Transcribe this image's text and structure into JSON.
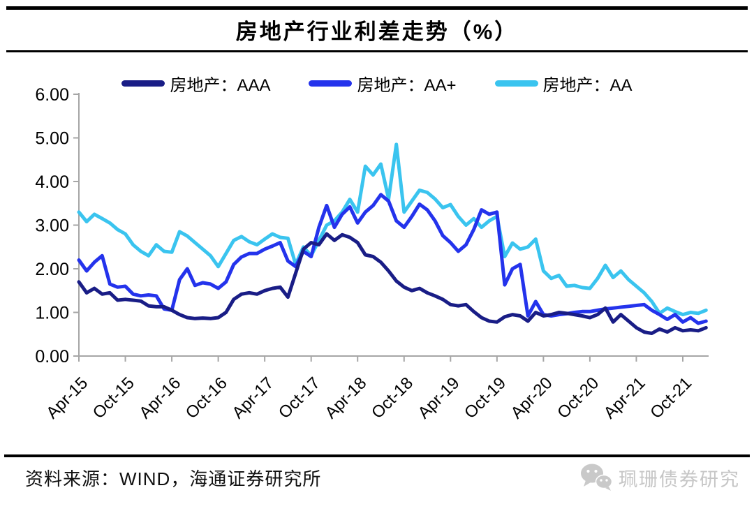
{
  "title": "房地产行业利差走势（%）",
  "source_note": "资料来源：WIND，海通证券研究所",
  "watermark": {
    "icon": "wechat-icon",
    "label": "珮珊债券研究"
  },
  "chart_data": {
    "type": "line",
    "title": "房地产行业利差走势（%）",
    "unit": "%",
    "x_start": "Apr-15",
    "x_end": "Jan-22",
    "x_frequency": "monthly",
    "x_tick_labels": [
      "Apr-15",
      "Oct-15",
      "Apr-16",
      "Oct-16",
      "Apr-17",
      "Oct-17",
      "Apr-18",
      "Oct-18",
      "Apr-19",
      "Oct-19",
      "Apr-20",
      "Oct-20",
      "Apr-21",
      "Oct-21"
    ],
    "x_tick_month_indices": [
      0,
      6,
      12,
      18,
      24,
      30,
      36,
      42,
      48,
      54,
      60,
      66,
      72,
      78
    ],
    "y_ticks": [
      "0.00",
      "1.00",
      "2.00",
      "3.00",
      "4.00",
      "5.00",
      "6.00"
    ],
    "ylim": [
      0,
      6
    ],
    "grid": false,
    "legend_position": "top",
    "axis_color": "#a6a6a6",
    "series": [
      {
        "name": "房地产：AAA",
        "color": "#191d86",
        "values": [
          1.7,
          1.45,
          1.55,
          1.42,
          1.45,
          1.28,
          1.3,
          1.28,
          1.26,
          1.15,
          1.13,
          1.13,
          1.05,
          0.95,
          0.88,
          0.86,
          0.87,
          0.86,
          0.88,
          1.0,
          1.3,
          1.42,
          1.45,
          1.42,
          1.5,
          1.55,
          1.58,
          1.35,
          1.9,
          2.45,
          2.6,
          2.55,
          2.8,
          2.65,
          2.78,
          2.72,
          2.6,
          2.32,
          2.28,
          2.15,
          1.95,
          1.72,
          1.58,
          1.5,
          1.55,
          1.45,
          1.38,
          1.3,
          1.18,
          1.15,
          1.18,
          1.02,
          0.88,
          0.8,
          0.78,
          0.9,
          0.95,
          0.92,
          0.8,
          1.0,
          0.92,
          0.95,
          1.0,
          0.98,
          0.95,
          0.92,
          0.88,
          0.95,
          1.1,
          0.78,
          0.95,
          0.8,
          0.65,
          0.55,
          0.52,
          0.62,
          0.55,
          0.65,
          0.58,
          0.6,
          0.58,
          0.65
        ]
      },
      {
        "name": "房地产：AA+",
        "color": "#2433ec",
        "values": [
          2.2,
          1.95,
          2.15,
          2.3,
          1.65,
          1.58,
          1.6,
          1.42,
          1.38,
          1.4,
          1.38,
          1.08,
          1.05,
          1.75,
          2.0,
          1.62,
          1.68,
          1.65,
          1.55,
          1.7,
          2.1,
          2.27,
          2.35,
          2.35,
          2.45,
          2.52,
          2.6,
          2.18,
          2.05,
          2.4,
          2.28,
          2.95,
          3.45,
          2.95,
          3.25,
          3.42,
          3.05,
          3.3,
          3.45,
          3.7,
          3.55,
          3.1,
          2.95,
          3.2,
          3.48,
          3.35,
          3.1,
          2.76,
          2.6,
          2.4,
          2.55,
          2.9,
          3.35,
          3.25,
          3.3,
          1.63,
          2.0,
          2.1,
          0.92,
          1.25,
          0.95,
          0.92,
          0.95,
          0.97,
          1.0,
          1.02,
          1.02,
          1.05,
          1.08,
          1.1,
          1.12,
          1.14,
          1.16,
          1.18,
          1.05,
          0.95,
          0.84,
          0.95,
          0.78,
          0.88,
          0.75,
          0.8
        ]
      },
      {
        "name": "房地产：AA",
        "color": "#3ac4ef",
        "values": [
          3.3,
          3.08,
          3.25,
          3.15,
          3.05,
          2.9,
          2.8,
          2.55,
          2.4,
          2.3,
          2.55,
          2.4,
          2.38,
          2.85,
          2.75,
          2.6,
          2.45,
          2.3,
          2.05,
          2.35,
          2.65,
          2.74,
          2.62,
          2.55,
          2.68,
          2.8,
          2.72,
          2.7,
          2.1,
          2.5,
          2.3,
          2.65,
          3.0,
          3.1,
          3.3,
          3.59,
          3.3,
          4.35,
          4.15,
          4.4,
          3.6,
          4.85,
          3.3,
          3.55,
          3.8,
          3.75,
          3.6,
          3.4,
          3.47,
          3.2,
          3.0,
          3.15,
          2.95,
          3.1,
          3.2,
          2.28,
          2.59,
          2.45,
          2.5,
          2.68,
          1.95,
          1.78,
          1.85,
          1.6,
          1.62,
          1.57,
          1.55,
          1.78,
          2.08,
          1.8,
          1.95,
          1.75,
          1.6,
          1.45,
          1.25,
          0.98,
          1.1,
          1.02,
          0.95,
          1.0,
          0.98,
          1.05
        ]
      }
    ]
  }
}
